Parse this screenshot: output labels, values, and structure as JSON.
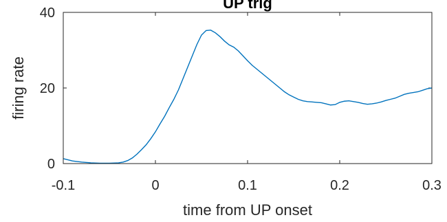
{
  "chart_data": {
    "type": "line",
    "title": "UP trig",
    "xlabel": "time from UP onset",
    "ylabel": "firing rate",
    "xlim": [
      -0.1,
      0.3
    ],
    "ylim": [
      0,
      40
    ],
    "x_ticks": [
      -0.1,
      0,
      0.1,
      0.2,
      0.3
    ],
    "x_tick_labels": [
      "-0.1",
      "0",
      "0.1",
      "0.2",
      "0.3"
    ],
    "y_ticks": [
      0,
      20,
      40
    ],
    "y_tick_labels": [
      "0",
      "20",
      "40"
    ],
    "grid": false,
    "line_color": "#0072BD",
    "series": [
      {
        "x": [
          -0.1,
          -0.09,
          -0.08,
          -0.07,
          -0.06,
          -0.05,
          -0.04,
          -0.035,
          -0.03,
          -0.025,
          -0.02,
          -0.015,
          -0.01,
          -0.005,
          0.0,
          0.005,
          0.01,
          0.015,
          0.02,
          0.025,
          0.03,
          0.035,
          0.04,
          0.045,
          0.05,
          0.055,
          0.06,
          0.065,
          0.07,
          0.075,
          0.08,
          0.085,
          0.09,
          0.095,
          0.1,
          0.105,
          0.11,
          0.115,
          0.12,
          0.125,
          0.13,
          0.135,
          0.14,
          0.145,
          0.15,
          0.155,
          0.16,
          0.165,
          0.17,
          0.175,
          0.18,
          0.185,
          0.19,
          0.195,
          0.2,
          0.205,
          0.21,
          0.215,
          0.22,
          0.225,
          0.23,
          0.235,
          0.24,
          0.245,
          0.25,
          0.255,
          0.26,
          0.265,
          0.27,
          0.275,
          0.28,
          0.285,
          0.29,
          0.295,
          0.3
        ],
        "y": [
          1.3,
          0.7,
          0.4,
          0.2,
          0.1,
          0.1,
          0.2,
          0.4,
          0.8,
          1.5,
          2.5,
          3.7,
          5.0,
          6.6,
          8.4,
          10.5,
          12.5,
          14.8,
          17.0,
          19.5,
          22.5,
          25.5,
          28.5,
          31.5,
          34.0,
          35.2,
          35.3,
          34.6,
          33.6,
          32.4,
          31.4,
          30.8,
          29.8,
          28.5,
          27.2,
          26.0,
          25.0,
          24.0,
          23.0,
          22.0,
          21.0,
          20.0,
          19.0,
          18.2,
          17.6,
          17.0,
          16.6,
          16.4,
          16.3,
          16.2,
          16.1,
          15.8,
          15.5,
          15.6,
          16.2,
          16.5,
          16.6,
          16.4,
          16.2,
          15.9,
          15.7,
          15.8,
          16.0,
          16.3,
          16.7,
          17.0,
          17.3,
          17.8,
          18.3,
          18.6,
          18.8,
          19.0,
          19.4,
          19.8,
          20.0
        ]
      }
    ]
  }
}
